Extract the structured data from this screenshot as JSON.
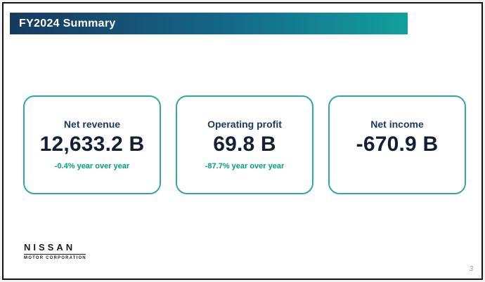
{
  "slide": {
    "title": "FY2024 Summary",
    "page_number": "3"
  },
  "cards": [
    {
      "label": "Net revenue",
      "value": "12,633.2 B",
      "yoy": "-0.4% year over year"
    },
    {
      "label": "Operating profit",
      "value": "69.8 B",
      "yoy": "-87.7% year over year"
    },
    {
      "label": "Net income",
      "value": "-670.9 B",
      "yoy": ""
    }
  ],
  "footer": {
    "brand": "NISSAN",
    "brand_sub": "MOTOR CORPORATION"
  },
  "colors": {
    "header_gradient_start": "#17395f",
    "header_gradient_mid": "#14688a",
    "header_gradient_end": "#12a09c",
    "card_border": "#2ea9a2",
    "label_color": "#17395f",
    "value_color": "#121f36",
    "yoy_color": "#00a07a"
  }
}
